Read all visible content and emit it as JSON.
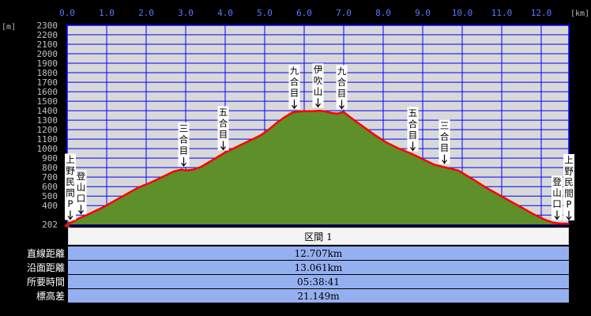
{
  "chart_data": {
    "type": "area",
    "xunit": "[km]",
    "yunit": "[m]",
    "xlim": [
      0,
      12.7
    ],
    "ylim": [
      202,
      2300
    ],
    "xticks": [
      "0.0",
      "1.0",
      "2.0",
      "3.0",
      "4.0",
      "5.0",
      "6.0",
      "7.0",
      "8.0",
      "9.0",
      "10.0",
      "11.0",
      "12.0"
    ],
    "xtick_values": [
      0,
      1,
      2,
      3,
      4,
      5,
      6,
      7,
      8,
      9,
      10,
      11,
      12
    ],
    "yticks": [
      "2300",
      "2200",
      "2100",
      "2000",
      "1900",
      "1800",
      "1700",
      "1600",
      "1500",
      "1400",
      "1300",
      "1200",
      "1100",
      "1000",
      "900",
      "800",
      "700",
      "600",
      "500",
      "400",
      "202"
    ],
    "ytick_values": [
      2300,
      2200,
      2100,
      2000,
      1900,
      1800,
      1700,
      1600,
      1500,
      1400,
      1300,
      1200,
      1100,
      1000,
      900,
      800,
      700,
      600,
      500,
      400,
      202
    ],
    "grid": true,
    "series": [
      {
        "x": [
          0.0,
          0.1,
          0.3,
          0.6,
          0.9,
          1.2,
          1.5,
          1.8,
          2.1,
          2.4,
          2.7,
          2.9,
          3.0,
          3.2,
          3.4,
          3.6,
          3.8,
          4.0,
          4.3,
          4.6,
          4.9,
          5.1,
          5.3,
          5.5,
          5.7,
          5.85,
          6.0,
          6.2,
          6.4,
          6.55,
          6.7,
          6.85,
          7.0,
          7.2,
          7.5,
          7.8,
          8.1,
          8.4,
          8.7,
          9.0,
          9.3,
          9.6,
          9.9,
          10.1,
          10.3,
          10.6,
          10.9,
          11.2,
          11.5,
          11.8,
          12.1,
          12.3,
          12.5,
          12.7
        ],
        "y": [
          215,
          220,
          265,
          320,
          380,
          450,
          520,
          590,
          640,
          700,
          760,
          780,
          770,
          780,
          810,
          860,
          910,
          960,
          1020,
          1080,
          1140,
          1200,
          1270,
          1330,
          1380,
          1390,
          1395,
          1395,
          1400,
          1390,
          1375,
          1370,
          1385,
          1320,
          1230,
          1140,
          1060,
          1000,
          950,
          890,
          830,
          800,
          770,
          720,
          670,
          590,
          520,
          450,
          380,
          310,
          250,
          220,
          210,
          210
        ]
      }
    ],
    "annotations": [
      {
        "text": "上野民間P",
        "x": 0.0
      },
      {
        "text": "登山口",
        "x": 0.35
      },
      {
        "text": "三合目",
        "x": 2.95
      },
      {
        "text": "五合目",
        "x": 3.95
      },
      {
        "text": "九合目",
        "x": 5.75
      },
      {
        "text": "伊吹山",
        "x": 6.35
      },
      {
        "text": "九合目",
        "x": 6.95
      },
      {
        "text": "五合目",
        "x": 8.75
      },
      {
        "text": "三合目",
        "x": 9.55
      },
      {
        "text": "登山口",
        "x": 12.4
      },
      {
        "text": "上野民間P",
        "x": 12.7
      }
    ]
  },
  "colors": {
    "background": "#000000",
    "plot_bg": "#d8d8d8",
    "grid": "#0000ff",
    "fill": "#5e8f2a",
    "line": "#ff0000",
    "label_bg": "#ffffff"
  },
  "info": {
    "section_label": "区間 1",
    "rows": [
      {
        "label": "直線距離",
        "value": "12.707km"
      },
      {
        "label": "沿面距離",
        "value": "13.061km"
      },
      {
        "label": "所要時間",
        "value": "05:38:41"
      },
      {
        "label": "標高差",
        "value": "21.149m"
      }
    ]
  }
}
